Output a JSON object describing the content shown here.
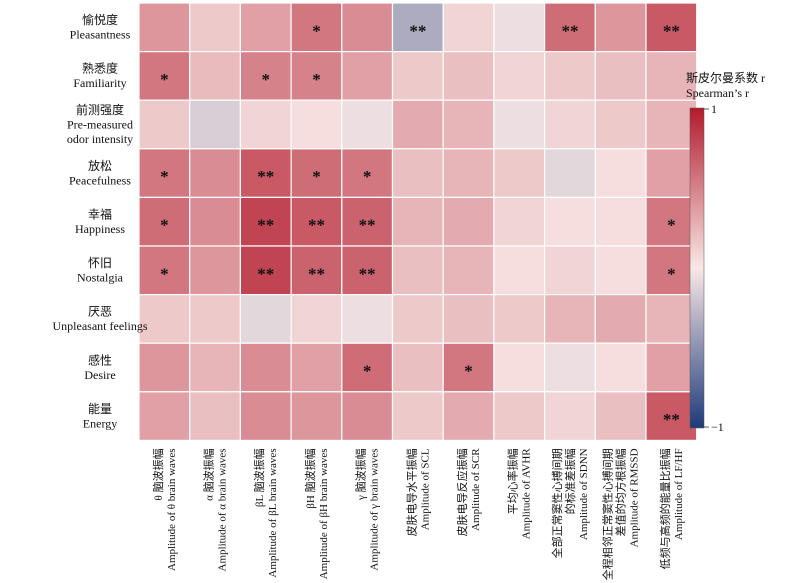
{
  "chart_data": {
    "type": "heatmap",
    "title": "",
    "rows": [
      {
        "zh": "愉悦度",
        "en": [
          "Pleasantness"
        ]
      },
      {
        "zh": "熟悉度",
        "en": [
          "Familiarity"
        ]
      },
      {
        "zh": "前测强度",
        "en": [
          "Pre-measured",
          "odor intensity"
        ]
      },
      {
        "zh": "放松",
        "en": [
          "Peacefulness"
        ]
      },
      {
        "zh": "幸福",
        "en": [
          "Happiness"
        ]
      },
      {
        "zh": "怀旧",
        "en": [
          "Nostalgia"
        ]
      },
      {
        "zh": "厌恶",
        "en": [
          "Unpleasant feelings"
        ]
      },
      {
        "zh": "感性",
        "en": [
          "Desire"
        ]
      },
      {
        "zh": "能量",
        "en": [
          "Energy"
        ]
      }
    ],
    "columns": [
      {
        "lines": [
          "θ 脑波振幅",
          "Amplitude of θ brain waves"
        ]
      },
      {
        "lines": [
          "α 脑波振幅",
          "Amplitude of α brain waves"
        ]
      },
      {
        "lines": [
          "βL 脑波振幅",
          "Amplitude of βL brain waves"
        ]
      },
      {
        "lines": [
          "βH 脑波振幅",
          "Amplitude of βH brain waves"
        ]
      },
      {
        "lines": [
          "γ 脑波振幅",
          "Amplitude of γ brain waves"
        ]
      },
      {
        "lines": [
          "皮肤电导水平振幅",
          "Amplitude of SCL"
        ]
      },
      {
        "lines": [
          "皮肤电导反应振幅",
          "Amplitude of SCR"
        ]
      },
      {
        "lines": [
          "平均心率振幅",
          "Amplitude of AVHR"
        ]
      },
      {
        "lines": [
          "全部正常窦性心搏间期",
          "的标准差振幅",
          "Amplitude of SDNN"
        ]
      },
      {
        "lines": [
          "全程相邻正常窦性心搏间期",
          "差值的均方根振幅",
          "Amplitude of RMSSD"
        ]
      },
      {
        "lines": [
          "低频与高频的能量比振幅",
          "Amplitude of LF/HF"
        ]
      }
    ],
    "values": [
      [
        0.4,
        0.15,
        0.35,
        0.55,
        0.45,
        -0.35,
        0.1,
        -0.05,
        0.6,
        0.4,
        0.7
      ],
      [
        0.55,
        0.22,
        0.5,
        0.5,
        0.35,
        0.15,
        0.2,
        0.1,
        0.15,
        0.2,
        0.25
      ],
      [
        0.15,
        -0.15,
        0.1,
        0.05,
        -0.05,
        0.3,
        0.25,
        -0.05,
        0.1,
        0.15,
        0.25
      ],
      [
        0.55,
        0.45,
        0.7,
        0.6,
        0.55,
        0.2,
        0.25,
        0.15,
        -0.1,
        0.05,
        0.35
      ],
      [
        0.6,
        0.45,
        0.8,
        0.7,
        0.65,
        0.25,
        0.3,
        0.1,
        0.05,
        0.05,
        0.55
      ],
      [
        0.55,
        0.4,
        0.8,
        0.65,
        0.65,
        0.2,
        0.25,
        0.05,
        0.1,
        0.05,
        0.55
      ],
      [
        0.15,
        0.15,
        -0.1,
        0.1,
        -0.05,
        0.15,
        0.2,
        0.15,
        0.25,
        0.3,
        0.25
      ],
      [
        0.4,
        0.25,
        0.45,
        0.35,
        0.6,
        0.2,
        0.55,
        0.05,
        -0.05,
        0.05,
        0.35
      ],
      [
        0.35,
        0.2,
        0.45,
        0.4,
        0.45,
        0.15,
        0.3,
        0.15,
        0.1,
        0.2,
        0.7
      ]
    ],
    "significance": [
      [
        "",
        "",
        "",
        "*",
        "",
        "**",
        "",
        "",
        "**",
        "",
        "**"
      ],
      [
        "*",
        "",
        "*",
        "*",
        "",
        "",
        "",
        "",
        "",
        "",
        ""
      ],
      [
        "",
        "",
        "",
        "",
        "",
        "",
        "",
        "",
        "",
        "",
        ""
      ],
      [
        "*",
        "",
        "**",
        "*",
        "*",
        "",
        "",
        "",
        "",
        "",
        ""
      ],
      [
        "*",
        "",
        "**",
        "**",
        "**",
        "",
        "",
        "",
        "",
        "",
        "*"
      ],
      [
        "*",
        "",
        "**",
        "**",
        "**",
        "",
        "",
        "",
        "",
        "",
        "*"
      ],
      [
        "",
        "",
        "",
        "",
        "",
        "",
        "",
        "",
        "",
        "",
        ""
      ],
      [
        "",
        "",
        "",
        "",
        "*",
        "",
        "*",
        "",
        "",
        "",
        ""
      ],
      [
        "",
        "",
        "",
        "",
        "",
        "",
        "",
        "",
        "",
        "",
        "**"
      ]
    ],
    "colorbar": {
      "title_zh": "斯皮尔曼系数 r",
      "title_en": "Spearman’s r",
      "min": -1,
      "max": 1,
      "tick_labels": [
        "1",
        "−1"
      ],
      "colors": {
        "neg": "#1f3a7a",
        "mid": "#f8e8e6",
        "pos": "#b31b2d"
      }
    }
  }
}
